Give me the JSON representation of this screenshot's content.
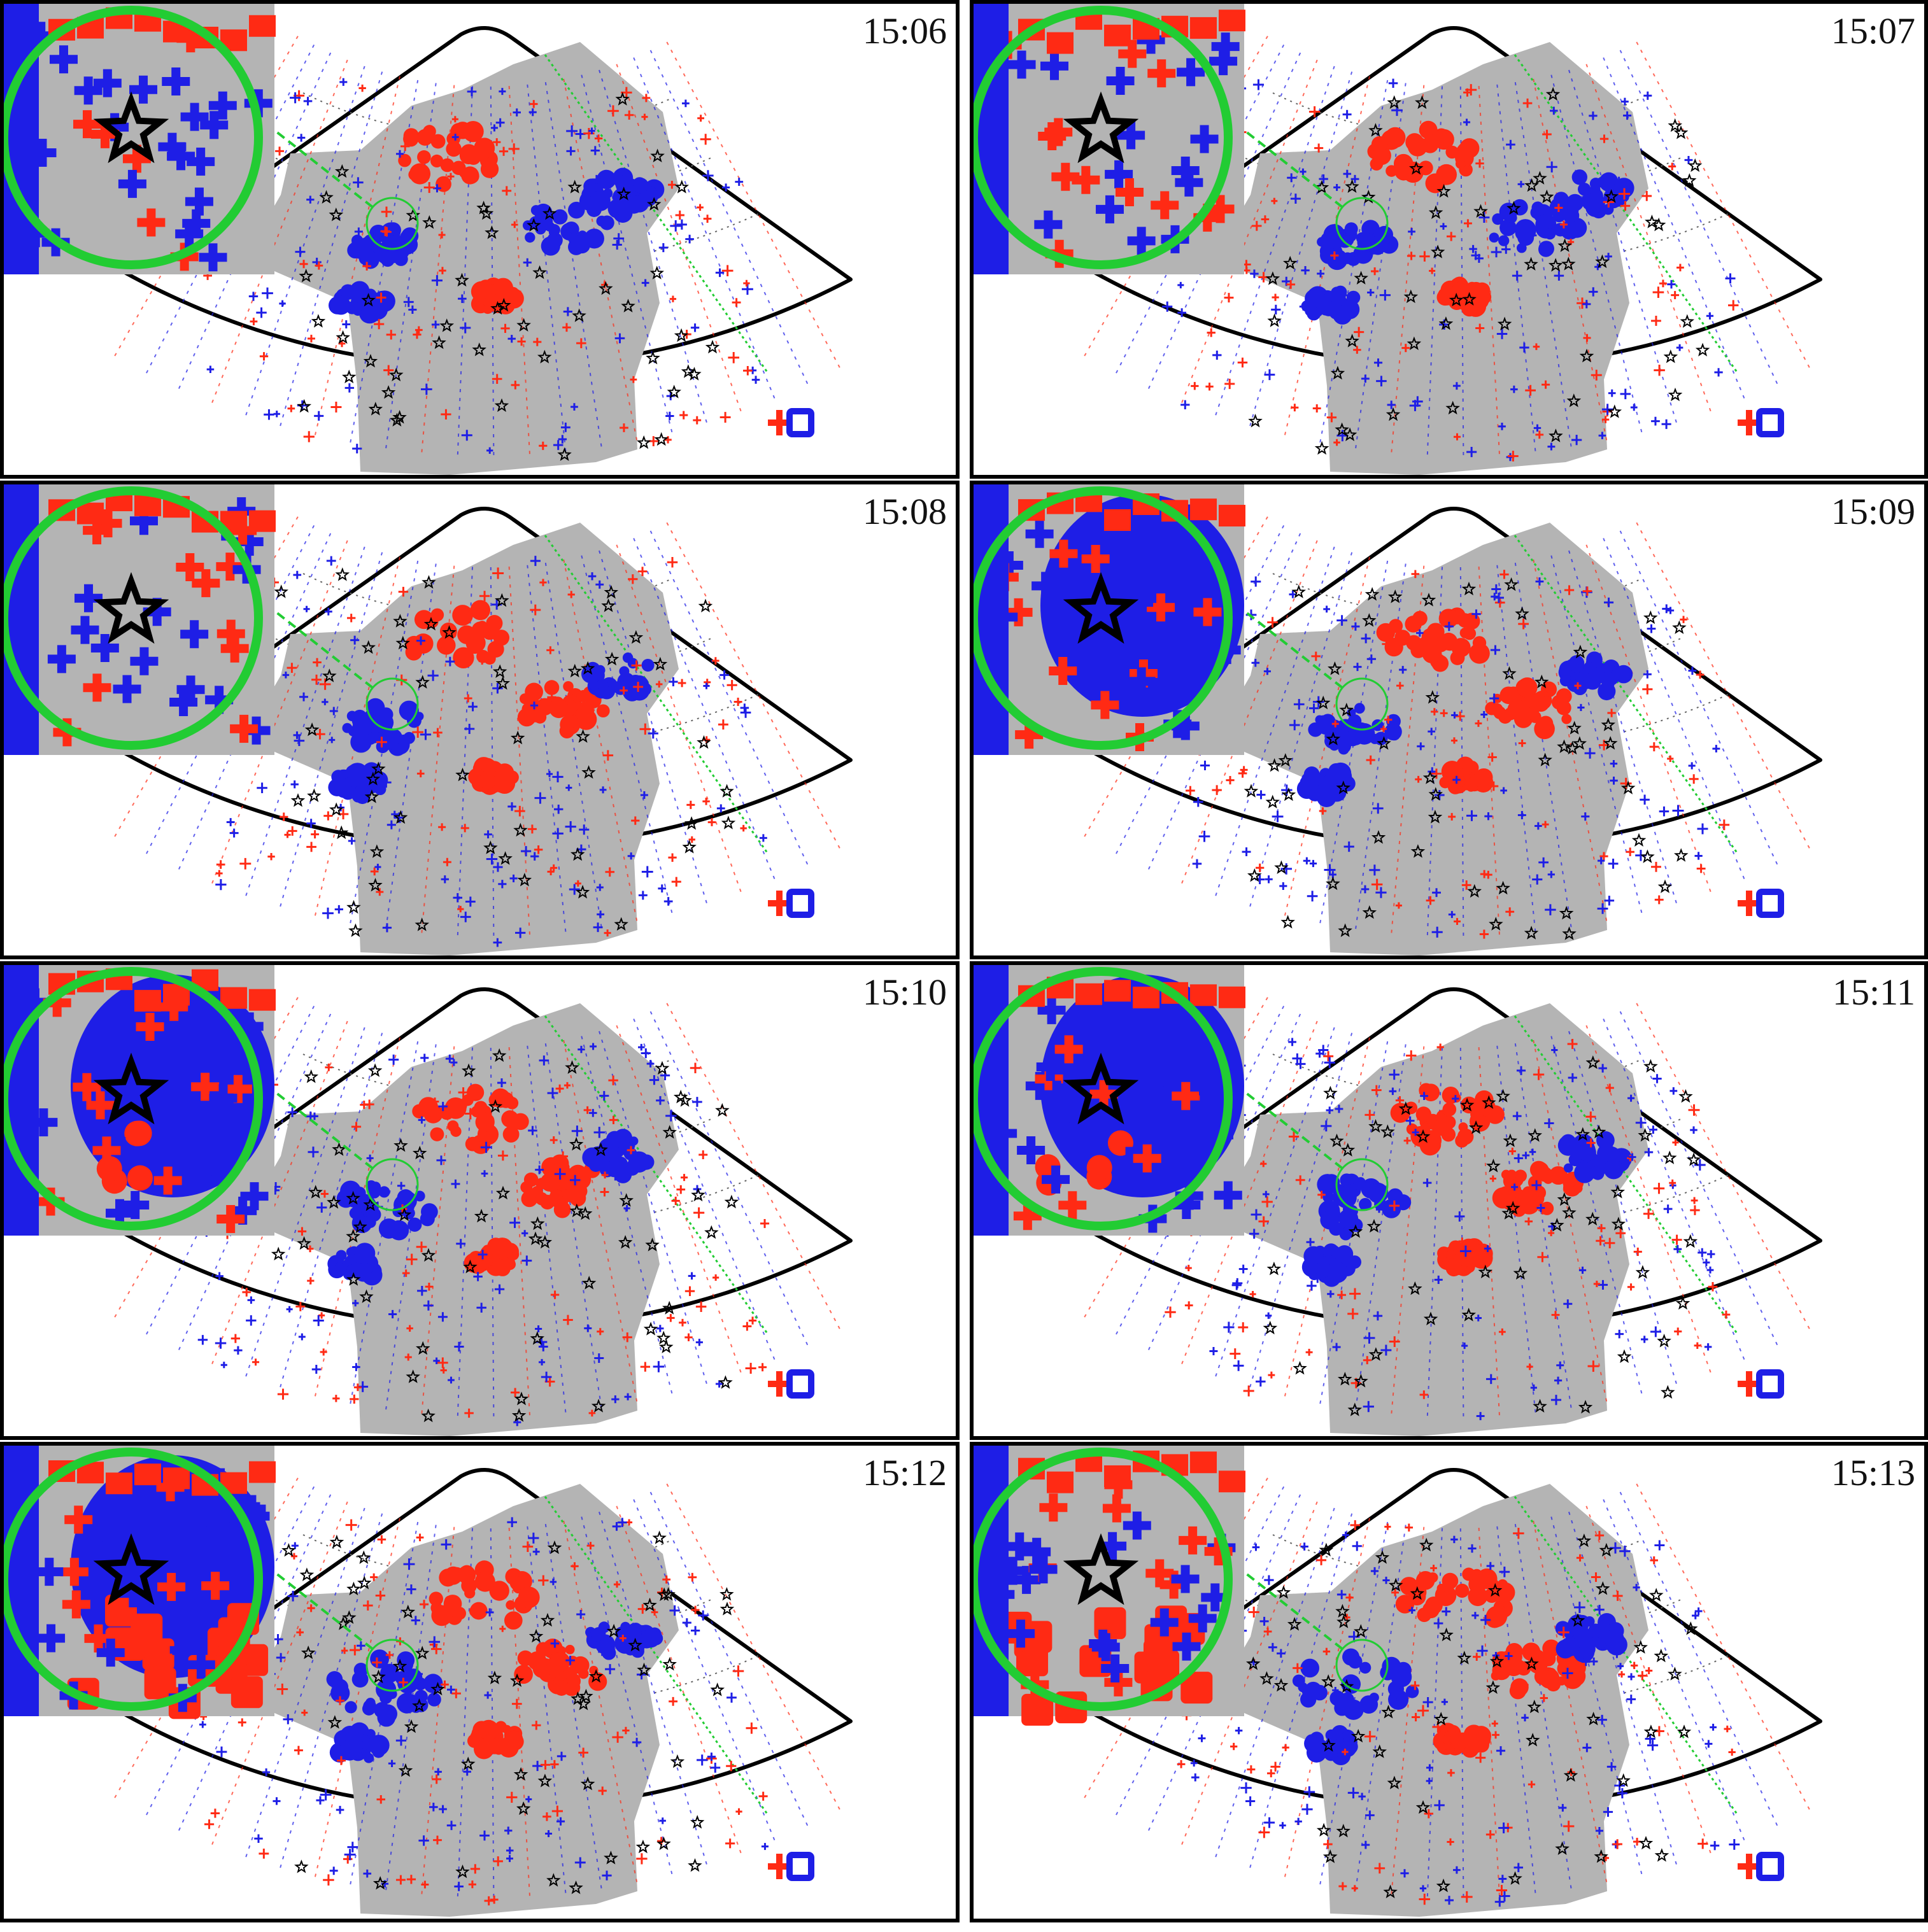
{
  "panels": [
    {
      "time": "15:06",
      "zoom_mix": "blue_sparse"
    },
    {
      "time": "15:07",
      "zoom_mix": "blue_plus"
    },
    {
      "time": "15:08",
      "zoom_mix": "blue_plus"
    },
    {
      "time": "15:09",
      "zoom_mix": "blue_solid"
    },
    {
      "time": "15:10",
      "zoom_mix": "blue_red_spots"
    },
    {
      "time": "15:11",
      "zoom_mix": "blue_red_spots"
    },
    {
      "time": "15:12",
      "zoom_mix": "blue_red_half"
    },
    {
      "time": "15:13",
      "zoom_mix": "red_blocks"
    }
  ],
  "colors": {
    "positive": "#ff2a14",
    "negative": "#1e1ee6",
    "coverage": "#b4b4b4",
    "zoom_ring": "#22cc33",
    "meridian": "#22cc33",
    "star": "#000000",
    "frame": "#000000"
  },
  "legend": {
    "marker_red": "plus",
    "marker_blue": "square"
  },
  "icons": {
    "station": "star-icon",
    "zoom": "magnifier-circle",
    "legend": "plus-square-legend"
  }
}
